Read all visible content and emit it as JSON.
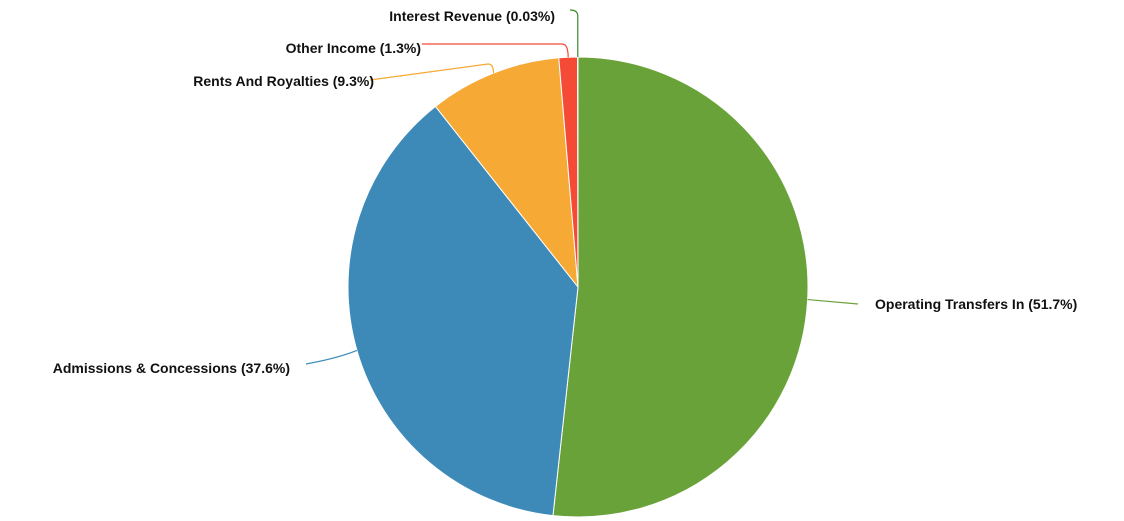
{
  "chart_data": {
    "type": "pie",
    "title": "",
    "slices": [
      {
        "label": "Operating Transfers In (51.7%)",
        "name": "Operating Transfers In",
        "percent": 51.7,
        "color": "#6aa23a"
      },
      {
        "label": "Admissions & Concessions (37.6%)",
        "name": "Admissions & Concessions",
        "percent": 37.6,
        "color": "#3d8ab8"
      },
      {
        "label": "Rents And Royalties (9.3%)",
        "name": "Rents And Royalties",
        "percent": 9.3,
        "color": "#f6a935"
      },
      {
        "label": "Other Income (1.3%)",
        "name": "Other Income",
        "percent": 1.3,
        "color": "#f44a36"
      },
      {
        "label": "Interest Revenue (0.03%)",
        "name": "Interest Revenue",
        "percent": 0.03,
        "color": "#3d8a2a"
      }
    ]
  }
}
